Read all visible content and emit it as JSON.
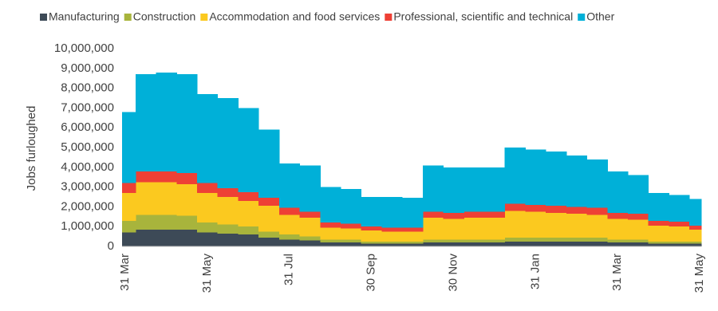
{
  "chart_data": {
    "type": "stacked_area",
    "y_label": "Jobs furloughed",
    "categories": [
      "31 Mar",
      null,
      null,
      null,
      "31 May",
      null,
      null,
      null,
      "31 Jul",
      null,
      null,
      null,
      "30 Sep",
      null,
      null,
      null,
      "30 Nov",
      null,
      null,
      null,
      "31 Jan",
      null,
      null,
      null,
      "31 Mar",
      null,
      null,
      null,
      "31 May"
    ],
    "series": [
      {
        "name": "Manufacturing",
        "color": "#3d4a57",
        "values": [
          700000,
          850000,
          850000,
          850000,
          700000,
          650000,
          600000,
          450000,
          350000,
          300000,
          200000,
          200000,
          150000,
          150000,
          150000,
          200000,
          200000,
          200000,
          200000,
          250000,
          250000,
          250000,
          250000,
          250000,
          200000,
          200000,
          150000,
          150000,
          150000
        ]
      },
      {
        "name": "Construction",
        "color": "#a8b43c",
        "values": [
          600000,
          750000,
          750000,
          700000,
          500000,
          450000,
          400000,
          300000,
          250000,
          200000,
          150000,
          150000,
          100000,
          100000,
          100000,
          150000,
          150000,
          150000,
          150000,
          200000,
          200000,
          200000,
          200000,
          200000,
          150000,
          150000,
          100000,
          100000,
          100000
        ]
      },
      {
        "name": "Accommodation and food services",
        "color": "#fbc91f",
        "values": [
          1400000,
          1650000,
          1650000,
          1600000,
          1500000,
          1400000,
          1300000,
          1300000,
          1000000,
          950000,
          600000,
          550000,
          550000,
          500000,
          500000,
          1100000,
          1050000,
          1100000,
          1100000,
          1350000,
          1300000,
          1250000,
          1200000,
          1150000,
          1050000,
          1000000,
          800000,
          750000,
          600000
        ]
      },
      {
        "name": "Professional, scientific and technical",
        "color": "#ee4035",
        "values": [
          500000,
          550000,
          550000,
          550000,
          500000,
          450000,
          450000,
          400000,
          350000,
          300000,
          250000,
          250000,
          200000,
          200000,
          200000,
          300000,
          300000,
          300000,
          300000,
          350000,
          350000,
          350000,
          350000,
          350000,
          300000,
          300000,
          250000,
          250000,
          200000
        ]
      },
      {
        "name": "Other",
        "color": "#00b0d8",
        "values": [
          3600000,
          4900000,
          5000000,
          5000000,
          4500000,
          4550000,
          4250000,
          3450000,
          2250000,
          2350000,
          1800000,
          1750000,
          1500000,
          1550000,
          1500000,
          2350000,
          2300000,
          2250000,
          2250000,
          2850000,
          2800000,
          2750000,
          2600000,
          2450000,
          2100000,
          1950000,
          1400000,
          1350000,
          1350000
        ]
      }
    ],
    "ylim": [
      0,
      10000000
    ],
    "yticks": [
      0,
      {
        "value": 1000000,
        "label": "1,000,000"
      },
      {
        "value": 2000000,
        "label": "2,000,000"
      },
      {
        "value": 3000000,
        "label": "3,000,000"
      },
      {
        "value": 4000000,
        "label": "4,000,000"
      },
      {
        "value": 5000000,
        "label": "5,000,000"
      },
      {
        "value": 6000000,
        "label": "6,000,000"
      },
      {
        "value": 7000000,
        "label": "7,000,000"
      },
      {
        "value": 8000000,
        "label": "8,000,000"
      },
      {
        "value": 9000000,
        "label": "9,000,000"
      },
      {
        "value": 10000000,
        "label": "10,000,000"
      }
    ],
    "legend": "top"
  }
}
